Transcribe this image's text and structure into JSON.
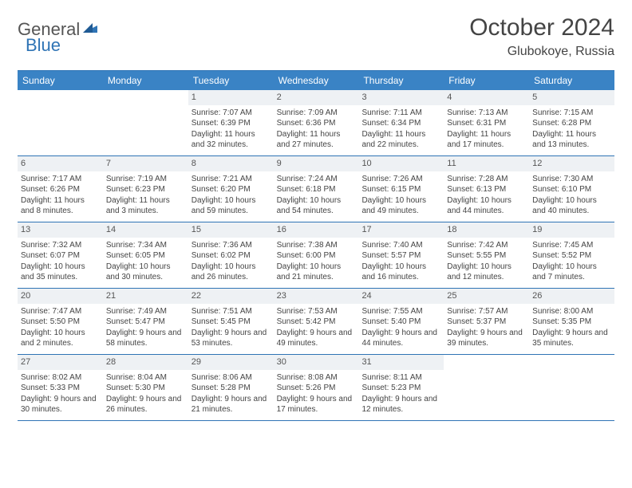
{
  "logo": {
    "word1": "General",
    "word2": "Blue"
  },
  "header": {
    "month": "October 2024",
    "location": "Glubokoye, Russia"
  },
  "colors": {
    "header_bg": "#3a83c5",
    "header_border": "#2f74b5",
    "daynum_bg": "#eef1f4",
    "text": "#444444"
  },
  "weekdays": [
    "Sunday",
    "Monday",
    "Tuesday",
    "Wednesday",
    "Thursday",
    "Friday",
    "Saturday"
  ],
  "weeks": [
    [
      {
        "blank": true
      },
      {
        "blank": true
      },
      {
        "n": "1",
        "sr": "Sunrise: 7:07 AM",
        "ss": "Sunset: 6:39 PM",
        "dl": "Daylight: 11 hours and 32 minutes."
      },
      {
        "n": "2",
        "sr": "Sunrise: 7:09 AM",
        "ss": "Sunset: 6:36 PM",
        "dl": "Daylight: 11 hours and 27 minutes."
      },
      {
        "n": "3",
        "sr": "Sunrise: 7:11 AM",
        "ss": "Sunset: 6:34 PM",
        "dl": "Daylight: 11 hours and 22 minutes."
      },
      {
        "n": "4",
        "sr": "Sunrise: 7:13 AM",
        "ss": "Sunset: 6:31 PM",
        "dl": "Daylight: 11 hours and 17 minutes."
      },
      {
        "n": "5",
        "sr": "Sunrise: 7:15 AM",
        "ss": "Sunset: 6:28 PM",
        "dl": "Daylight: 11 hours and 13 minutes."
      }
    ],
    [
      {
        "n": "6",
        "sr": "Sunrise: 7:17 AM",
        "ss": "Sunset: 6:26 PM",
        "dl": "Daylight: 11 hours and 8 minutes."
      },
      {
        "n": "7",
        "sr": "Sunrise: 7:19 AM",
        "ss": "Sunset: 6:23 PM",
        "dl": "Daylight: 11 hours and 3 minutes."
      },
      {
        "n": "8",
        "sr": "Sunrise: 7:21 AM",
        "ss": "Sunset: 6:20 PM",
        "dl": "Daylight: 10 hours and 59 minutes."
      },
      {
        "n": "9",
        "sr": "Sunrise: 7:24 AM",
        "ss": "Sunset: 6:18 PM",
        "dl": "Daylight: 10 hours and 54 minutes."
      },
      {
        "n": "10",
        "sr": "Sunrise: 7:26 AM",
        "ss": "Sunset: 6:15 PM",
        "dl": "Daylight: 10 hours and 49 minutes."
      },
      {
        "n": "11",
        "sr": "Sunrise: 7:28 AM",
        "ss": "Sunset: 6:13 PM",
        "dl": "Daylight: 10 hours and 44 minutes."
      },
      {
        "n": "12",
        "sr": "Sunrise: 7:30 AM",
        "ss": "Sunset: 6:10 PM",
        "dl": "Daylight: 10 hours and 40 minutes."
      }
    ],
    [
      {
        "n": "13",
        "sr": "Sunrise: 7:32 AM",
        "ss": "Sunset: 6:07 PM",
        "dl": "Daylight: 10 hours and 35 minutes."
      },
      {
        "n": "14",
        "sr": "Sunrise: 7:34 AM",
        "ss": "Sunset: 6:05 PM",
        "dl": "Daylight: 10 hours and 30 minutes."
      },
      {
        "n": "15",
        "sr": "Sunrise: 7:36 AM",
        "ss": "Sunset: 6:02 PM",
        "dl": "Daylight: 10 hours and 26 minutes."
      },
      {
        "n": "16",
        "sr": "Sunrise: 7:38 AM",
        "ss": "Sunset: 6:00 PM",
        "dl": "Daylight: 10 hours and 21 minutes."
      },
      {
        "n": "17",
        "sr": "Sunrise: 7:40 AM",
        "ss": "Sunset: 5:57 PM",
        "dl": "Daylight: 10 hours and 16 minutes."
      },
      {
        "n": "18",
        "sr": "Sunrise: 7:42 AM",
        "ss": "Sunset: 5:55 PM",
        "dl": "Daylight: 10 hours and 12 minutes."
      },
      {
        "n": "19",
        "sr": "Sunrise: 7:45 AM",
        "ss": "Sunset: 5:52 PM",
        "dl": "Daylight: 10 hours and 7 minutes."
      }
    ],
    [
      {
        "n": "20",
        "sr": "Sunrise: 7:47 AM",
        "ss": "Sunset: 5:50 PM",
        "dl": "Daylight: 10 hours and 2 minutes."
      },
      {
        "n": "21",
        "sr": "Sunrise: 7:49 AM",
        "ss": "Sunset: 5:47 PM",
        "dl": "Daylight: 9 hours and 58 minutes."
      },
      {
        "n": "22",
        "sr": "Sunrise: 7:51 AM",
        "ss": "Sunset: 5:45 PM",
        "dl": "Daylight: 9 hours and 53 minutes."
      },
      {
        "n": "23",
        "sr": "Sunrise: 7:53 AM",
        "ss": "Sunset: 5:42 PM",
        "dl": "Daylight: 9 hours and 49 minutes."
      },
      {
        "n": "24",
        "sr": "Sunrise: 7:55 AM",
        "ss": "Sunset: 5:40 PM",
        "dl": "Daylight: 9 hours and 44 minutes."
      },
      {
        "n": "25",
        "sr": "Sunrise: 7:57 AM",
        "ss": "Sunset: 5:37 PM",
        "dl": "Daylight: 9 hours and 39 minutes."
      },
      {
        "n": "26",
        "sr": "Sunrise: 8:00 AM",
        "ss": "Sunset: 5:35 PM",
        "dl": "Daylight: 9 hours and 35 minutes."
      }
    ],
    [
      {
        "n": "27",
        "sr": "Sunrise: 8:02 AM",
        "ss": "Sunset: 5:33 PM",
        "dl": "Daylight: 9 hours and 30 minutes."
      },
      {
        "n": "28",
        "sr": "Sunrise: 8:04 AM",
        "ss": "Sunset: 5:30 PM",
        "dl": "Daylight: 9 hours and 26 minutes."
      },
      {
        "n": "29",
        "sr": "Sunrise: 8:06 AM",
        "ss": "Sunset: 5:28 PM",
        "dl": "Daylight: 9 hours and 21 minutes."
      },
      {
        "n": "30",
        "sr": "Sunrise: 8:08 AM",
        "ss": "Sunset: 5:26 PM",
        "dl": "Daylight: 9 hours and 17 minutes."
      },
      {
        "n": "31",
        "sr": "Sunrise: 8:11 AM",
        "ss": "Sunset: 5:23 PM",
        "dl": "Daylight: 9 hours and 12 minutes."
      },
      {
        "blank": true
      },
      {
        "blank": true
      }
    ]
  ]
}
